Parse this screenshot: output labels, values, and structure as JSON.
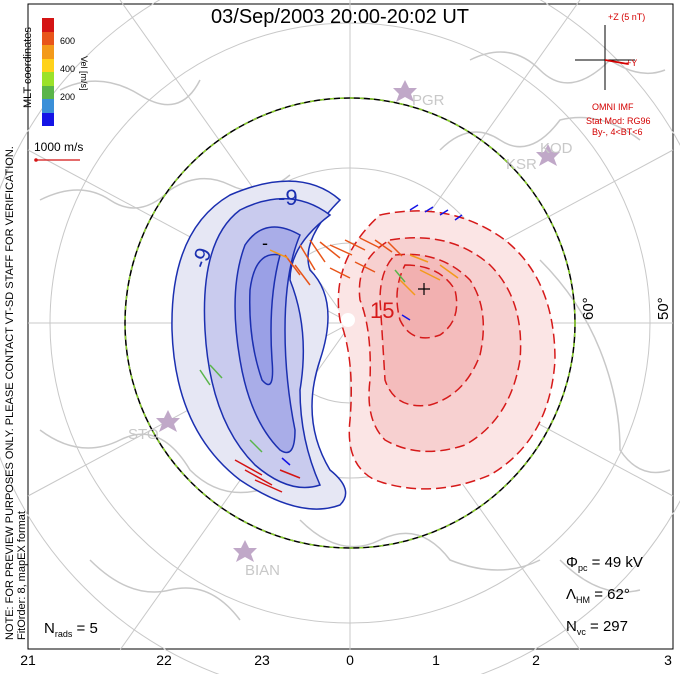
{
  "title": "03/Sep/2003 20:00-20:02 UT",
  "coordinates": "MLT coordinates",
  "preview_note": "NOTE: FOR PREVIEW PURPOSES ONLY. PLEASE CONTACT VT-SD STAFF FOR VERIFICATION.",
  "fit_order": "FitOrder: 8, mapEX format",
  "colorbar": {
    "title": "Vel [m/s]",
    "labels": [
      "600",
      "400",
      "200"
    ],
    "colors": [
      "#1414e6",
      "#3a8fd8",
      "#5ab54a",
      "#9be22a",
      "#ffd21a",
      "#f39a1a",
      "#e8551a",
      "#d41414"
    ]
  },
  "scale_vector": "1000 m/s",
  "imf": {
    "axis_z": "+Z (5 nT)",
    "axis_y": "+Y",
    "source": "OMNI IMF",
    "model": "Stat Mod: RG96",
    "model_params": "By-, 4<BT<6"
  },
  "contour_labels": {
    "neg_outer": "-9",
    "neg_inner": "-9",
    "neg_dash": "-",
    "pos": "15"
  },
  "latitude_labels": [
    "60°",
    "50°"
  ],
  "radar_sites": [
    "PGR",
    "KOD",
    "KSR",
    "STO",
    "BIAN"
  ],
  "stats": {
    "phi_pc": {
      "sym": "Φ",
      "sub": "pc",
      "value": "= 49 kV"
    },
    "lambda_hm": {
      "sym": "Λ",
      "sub": "HM",
      "value": "= 62°"
    },
    "n_vc": {
      "sym": "N",
      "sub": "vc",
      "value": "= 297"
    },
    "n_rads": {
      "sym": "N",
      "sub": "rads",
      "value": "= 5"
    }
  },
  "mlt_ticks": [
    "21",
    "22",
    "23",
    "0",
    "1",
    "2",
    "3"
  ],
  "colors": {
    "negative_fill": "#9aa0e6",
    "positive_fill": "#f2b0b0",
    "negative_line": "#1b2fb0",
    "positive_line": "#d61a1a",
    "map_gray": "#c8c8c8",
    "imf_red": "#d40000"
  }
}
